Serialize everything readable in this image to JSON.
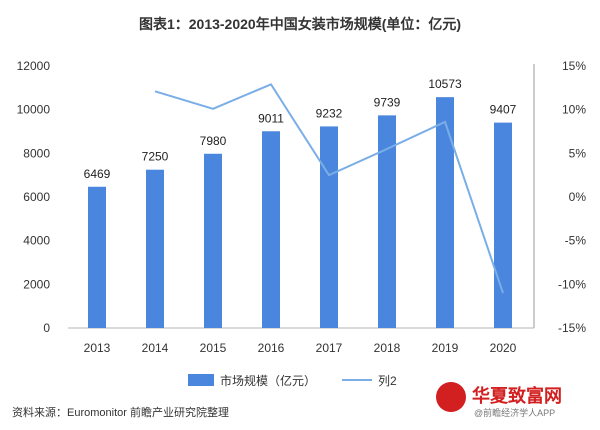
{
  "header": {
    "title": "图表1：2013-2020年中国女装市场规模(单位：亿元)"
  },
  "chart_data": {
    "type": "bar",
    "categories": [
      "2013",
      "2014",
      "2015",
      "2016",
      "2017",
      "2018",
      "2019",
      "2020"
    ],
    "series": [
      {
        "name": "市场规模（亿元）",
        "type": "bar",
        "axis": "left",
        "values": [
          6469,
          7250,
          7980,
          9011,
          9232,
          9739,
          10573,
          9407
        ],
        "color": "#4a86dd"
      },
      {
        "name": "列2",
        "type": "line",
        "axis": "right",
        "values": [
          null,
          12.1,
          10.1,
          12.9,
          2.5,
          5.5,
          8.6,
          -11.0
        ],
        "color": "#7aaee6"
      }
    ],
    "y_left": {
      "min": 0,
      "max": 12000,
      "ticks": [
        "0",
        "2000",
        "4000",
        "6000",
        "8000",
        "10000",
        "12000"
      ]
    },
    "y_right": {
      "min": -15,
      "max": 15,
      "ticks": [
        "-15%",
        "-10%",
        "-5%",
        "0%",
        "5%",
        "10%",
        "15%"
      ]
    },
    "legend_position": "bottom",
    "grid": false
  },
  "footer": {
    "source": "资料来源：Euromonitor 前瞻产业研究院整理",
    "watermark": "华夏致富网",
    "watermark_sub": "@前瞻经济学人APP"
  }
}
